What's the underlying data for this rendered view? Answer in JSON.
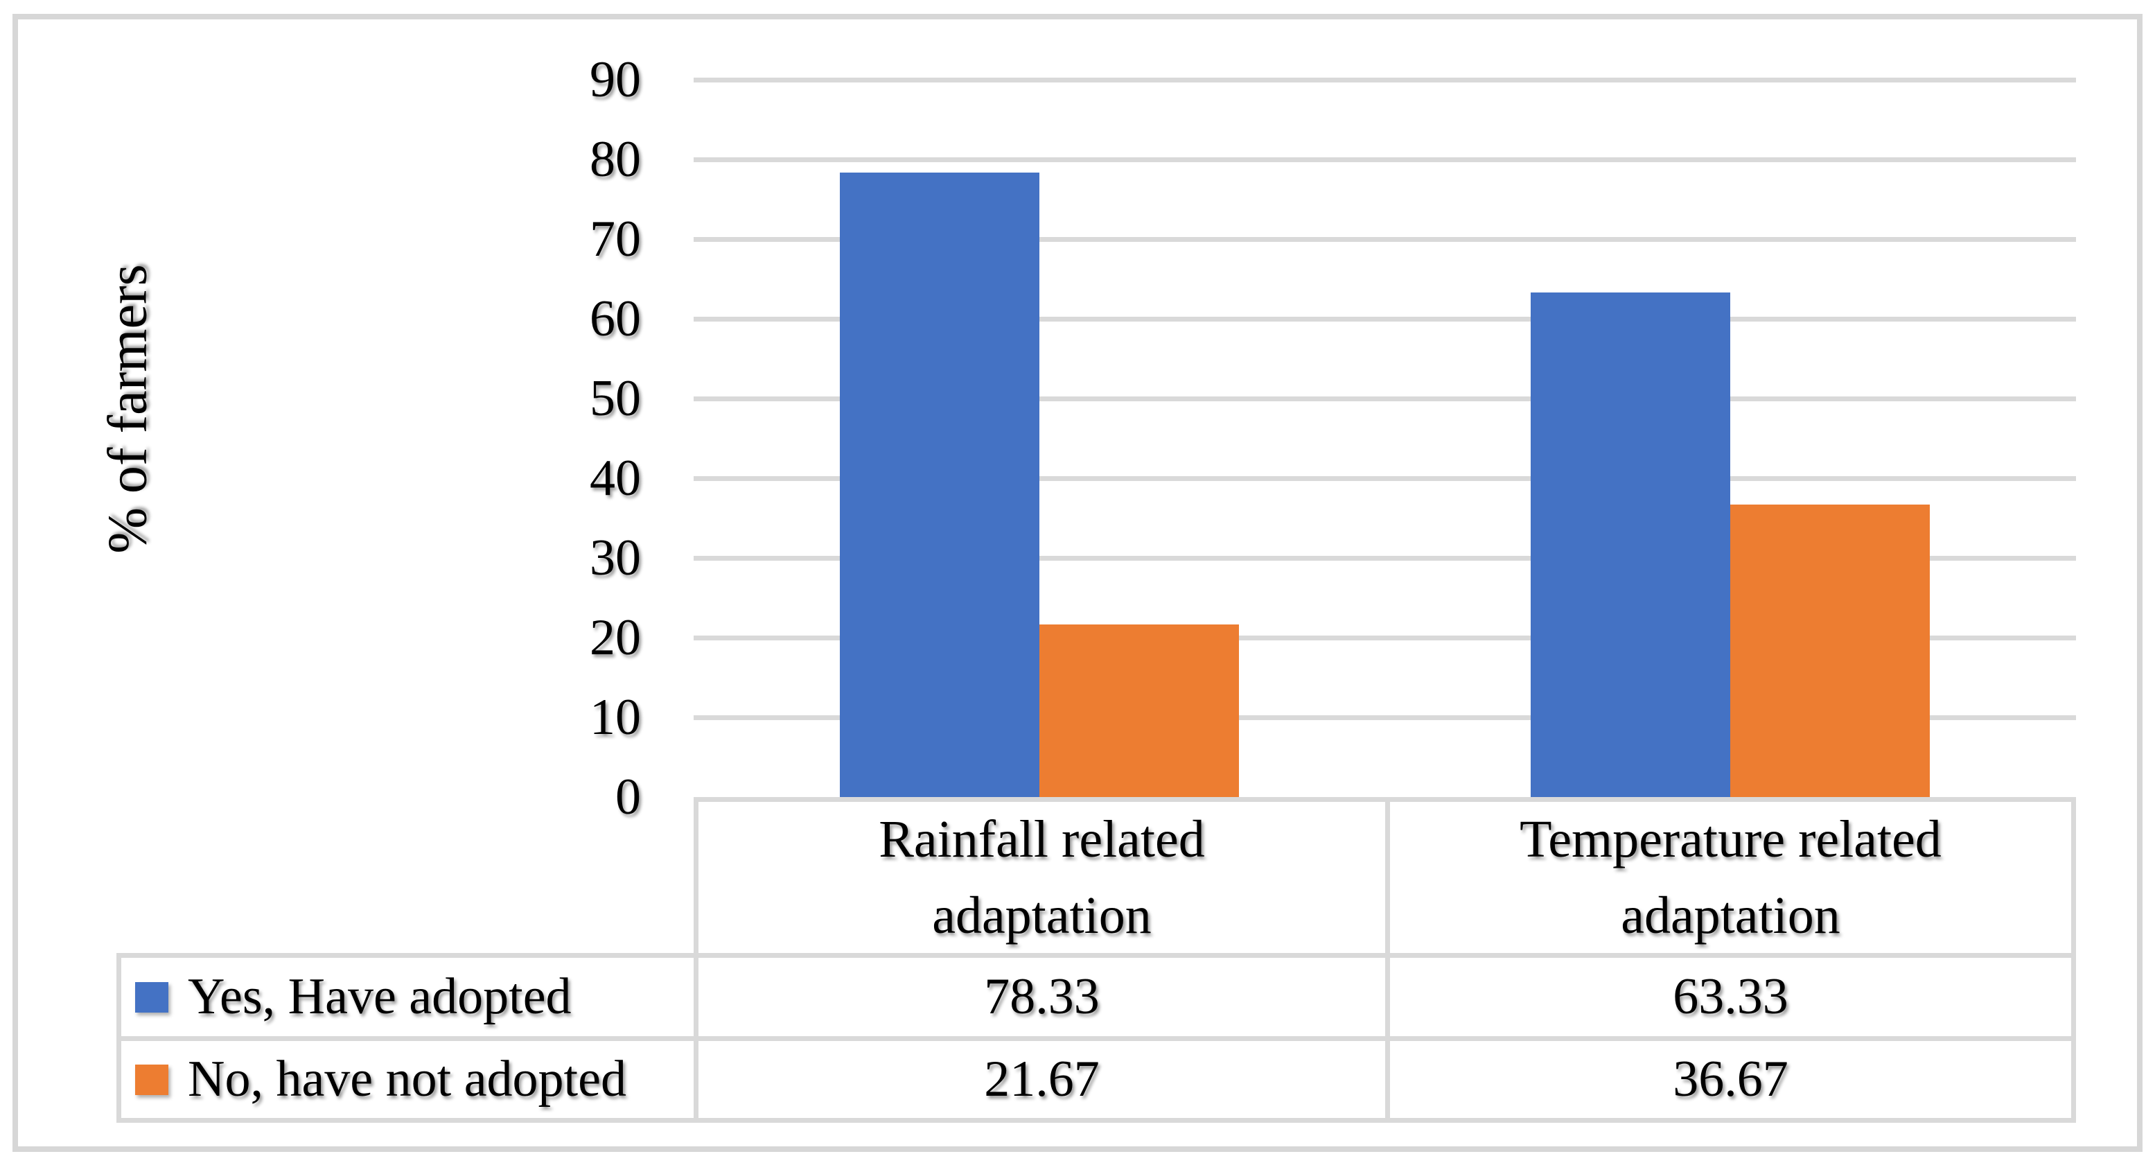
{
  "figure": {
    "background": "#ffffff",
    "border_color": "#d7d7d7"
  },
  "chart_data": {
    "type": "bar",
    "title": "",
    "xlabel": "",
    "ylabel": "% of farmers",
    "categories": [
      "Rainfall related adaptation",
      "Temperature related adaptation"
    ],
    "series": [
      {
        "name": "Yes, Have adopted",
        "color": "#4472C4",
        "values": [
          78.33,
          63.33
        ],
        "value_labels": [
          "78.33",
          "63.33"
        ]
      },
      {
        "name": "No, have not adopted",
        "color": "#ED7D31",
        "values": [
          21.67,
          36.67
        ],
        "value_labels": [
          "21.67",
          "36.67"
        ]
      }
    ],
    "ylim": [
      0,
      90
    ],
    "yticks": [
      90,
      80,
      70,
      60,
      50,
      40,
      30,
      20,
      10,
      0
    ],
    "grid": "horizontal",
    "gridline_color": "#d9d9d9",
    "legend_position": "data-table-left-column",
    "table_border_color": "#d9d9d9",
    "text_color": "#000000"
  }
}
